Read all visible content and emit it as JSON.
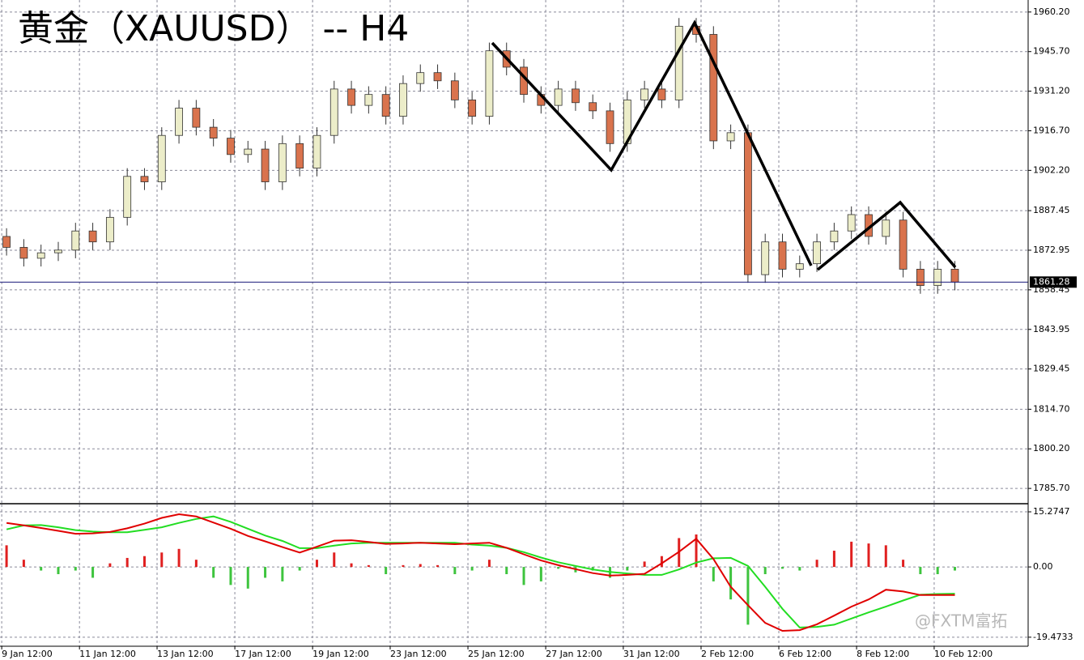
{
  "chart_data": [
    {
      "type": "candlestick",
      "title": "黄金（XAUUSD） -- H4",
      "open": [
        1878,
        1874,
        1870,
        1872,
        1873,
        1880,
        1876,
        1885,
        1900,
        1898,
        1915,
        1925,
        1918,
        1914,
        1908,
        1910,
        1898,
        1912,
        1903,
        1915,
        1932,
        1926,
        1930,
        1922,
        1934,
        1938,
        1935,
        1928,
        1922,
        1946,
        1940,
        1930,
        1926,
        1932,
        1927,
        1924,
        1912,
        1928,
        1932,
        1928,
        1955,
        1952,
        1913,
        1916,
        1864,
        1876,
        1866,
        1868,
        1876,
        1880,
        1886,
        1878,
        1884,
        1866,
        1860,
        1866
      ],
      "high": [
        1881,
        1877,
        1875,
        1876,
        1883,
        1883,
        1888,
        1903,
        1903,
        1918,
        1928,
        1928,
        1921,
        1917,
        1913,
        1913,
        1915,
        1915,
        1918,
        1935,
        1935,
        1933,
        1933,
        1937,
        1941,
        1941,
        1938,
        1931,
        1949,
        1949,
        1943,
        1933,
        1935,
        1935,
        1930,
        1927,
        1931,
        1935,
        1935,
        1958,
        1958,
        1955,
        1919,
        1919,
        1879,
        1879,
        1871,
        1879,
        1883,
        1889,
        1889,
        1887,
        1887,
        1869,
        1869,
        1869
      ],
      "low": [
        1871,
        1867,
        1867,
        1869,
        1870,
        1873,
        1873,
        1882,
        1895,
        1895,
        1912,
        1915,
        1911,
        1905,
        1905,
        1895,
        1895,
        1900,
        1900,
        1912,
        1923,
        1923,
        1919,
        1919,
        1931,
        1932,
        1925,
        1919,
        1919,
        1937,
        1927,
        1923,
        1923,
        1924,
        1921,
        1909,
        1909,
        1925,
        1925,
        1925,
        1949,
        1910,
        1910,
        1861,
        1861,
        1863,
        1863,
        1865,
        1873,
        1877,
        1875,
        1875,
        1863,
        1857,
        1857,
        1858.28
      ],
      "close": [
        1874,
        1870,
        1872,
        1873,
        1880,
        1876,
        1885,
        1900,
        1898,
        1915,
        1925,
        1918,
        1914,
        1908,
        1910,
        1898,
        1912,
        1903,
        1915,
        1932,
        1926,
        1930,
        1922,
        1934,
        1938,
        1935,
        1928,
        1922,
        1946,
        1940,
        1930,
        1926,
        1932,
        1927,
        1924,
        1912,
        1928,
        1932,
        1928,
        1955,
        1952,
        1913,
        1916,
        1864,
        1876,
        1866,
        1868,
        1876,
        1880,
        1886,
        1878,
        1884,
        1866,
        1860,
        1866,
        1861.28
      ],
      "up_color": "#ecedc9",
      "down_color": "#d9734d",
      "edge_color": "#333333",
      "xlim": [
        -0.38,
        59.25
      ],
      "ylim": [
        1780.4,
        1964.6
      ],
      "yticks": [
        {
          "value": 1960.2,
          "label": "1960.20"
        },
        {
          "value": 1945.7,
          "label": "1945.70"
        },
        {
          "value": 1931.2,
          "label": "1931.20"
        },
        {
          "value": 1916.7,
          "label": "1916.70"
        },
        {
          "value": 1902.2,
          "label": "1902.20"
        },
        1887.45,
        1872.95,
        1858.45,
        1843.95,
        1829.45,
        {
          "value": 1814.7,
          "label": "1814.70"
        },
        {
          "value": 1800.2,
          "label": "1800.20"
        },
        {
          "value": 1785.7,
          "label": "1785.70"
        }
      ],
      "current_price": {
        "value": 1861.28,
        "label": "1861.28"
      },
      "grid": true
    },
    {
      "type": "macd",
      "histogram": {
        "values": [
          6,
          2,
          -1,
          -2,
          -1,
          -3,
          1,
          2.5,
          3,
          4,
          5,
          2,
          -3,
          -5,
          -6,
          -3,
          -4,
          -1,
          2,
          4,
          1,
          0.5,
          -2,
          0.5,
          0.8,
          0.5,
          -2,
          -1,
          2,
          -2,
          -5,
          -4,
          -0.5,
          -1.5,
          -1,
          -3,
          -1,
          1.5,
          3,
          8,
          9,
          -4,
          -9,
          -16,
          -2,
          -0.5,
          -1,
          2,
          4.5,
          7,
          6.5,
          6,
          2,
          -2,
          -2,
          -1
        ],
        "positive_color": "#e02020",
        "negative_color": "#3ec43e"
      },
      "macd_line": {
        "color": "#e00000",
        "values": [
          12.2,
          11.5,
          10.8,
          10,
          9.2,
          9.3,
          9.7,
          10.7,
          12,
          13.6,
          14.6,
          14,
          12.3,
          10.6,
          8.6,
          7.1,
          5.5,
          4,
          5.6,
          7.3,
          7.4,
          6.9,
          6.4,
          6.5,
          6.7,
          6.5,
          6.3,
          6.5,
          6.7,
          5.3,
          3.5,
          1.8,
          0.5,
          -0.6,
          -1.7,
          -2.4,
          -2.2,
          -1.9,
          1,
          4.2,
          7.8,
          2.2,
          -5.5,
          -10.6,
          -15.5,
          -17.7,
          -17.5,
          -15.9,
          -13.5,
          -11,
          -9,
          -6.3,
          -6.8,
          -7.8,
          -7.8,
          -7.8
        ]
      },
      "signal_line": {
        "color": "#22dd22",
        "values": [
          10.4,
          11.5,
          11.6,
          11,
          10.2,
          9.8,
          9.6,
          9.6,
          10.3,
          11,
          12.2,
          13.3,
          14,
          12.5,
          10.6,
          8.7,
          7.2,
          5.2,
          5.2,
          5.9,
          6.5,
          6.7,
          6.7,
          6.7,
          6.7,
          6.7,
          6.7,
          6.2,
          5.9,
          5.3,
          4.1,
          2.6,
          1.3,
          0.3,
          -0.7,
          -1.4,
          -1.8,
          -2.2,
          -2.2,
          -0.7,
          1.2,
          2.4,
          2.5,
          0.3,
          -5.5,
          -11.6,
          -16.8,
          -16.6,
          -16,
          -14.3,
          -12.6,
          -11,
          -9.3,
          -7.7,
          -7.5,
          -7.4
        ]
      },
      "xlim": [
        -0.38,
        59.25
      ],
      "ylim": [
        -21.3,
        17.3
      ],
      "yticks": [
        15.2747,
        {
          "value": 0,
          "label": "0.00"
        },
        -19.4733
      ],
      "xticks": [
        {
          "value": -0.28,
          "label": "9 Jan 12:00"
        },
        {
          "value": 4.23,
          "label": "11 Jan 12:00"
        },
        {
          "value": 8.73,
          "label": "13 Jan 12:00"
        },
        {
          "value": 13.24,
          "label": "17 Jan 12:00"
        },
        {
          "value": 17.75,
          "label": "19 Jan 12:00"
        },
        {
          "value": 22.25,
          "label": "23 Jan 12:00"
        },
        {
          "value": 26.76,
          "label": "25 Jan 12:00"
        },
        {
          "value": 31.27,
          "label": "27 Jan 12:00"
        },
        {
          "value": 35.77,
          "label": "31 Jan 12:00"
        },
        {
          "value": 40.28,
          "label": "2 Feb 12:00"
        },
        {
          "value": 44.79,
          "label": "6 Feb 12:00"
        },
        {
          "value": 49.3,
          "label": "8 Feb 12:00"
        },
        {
          "value": 53.8,
          "label": "10 Feb 12:00"
        }
      ],
      "grid": true
    }
  ],
  "watermark": "@FXTM富拓"
}
